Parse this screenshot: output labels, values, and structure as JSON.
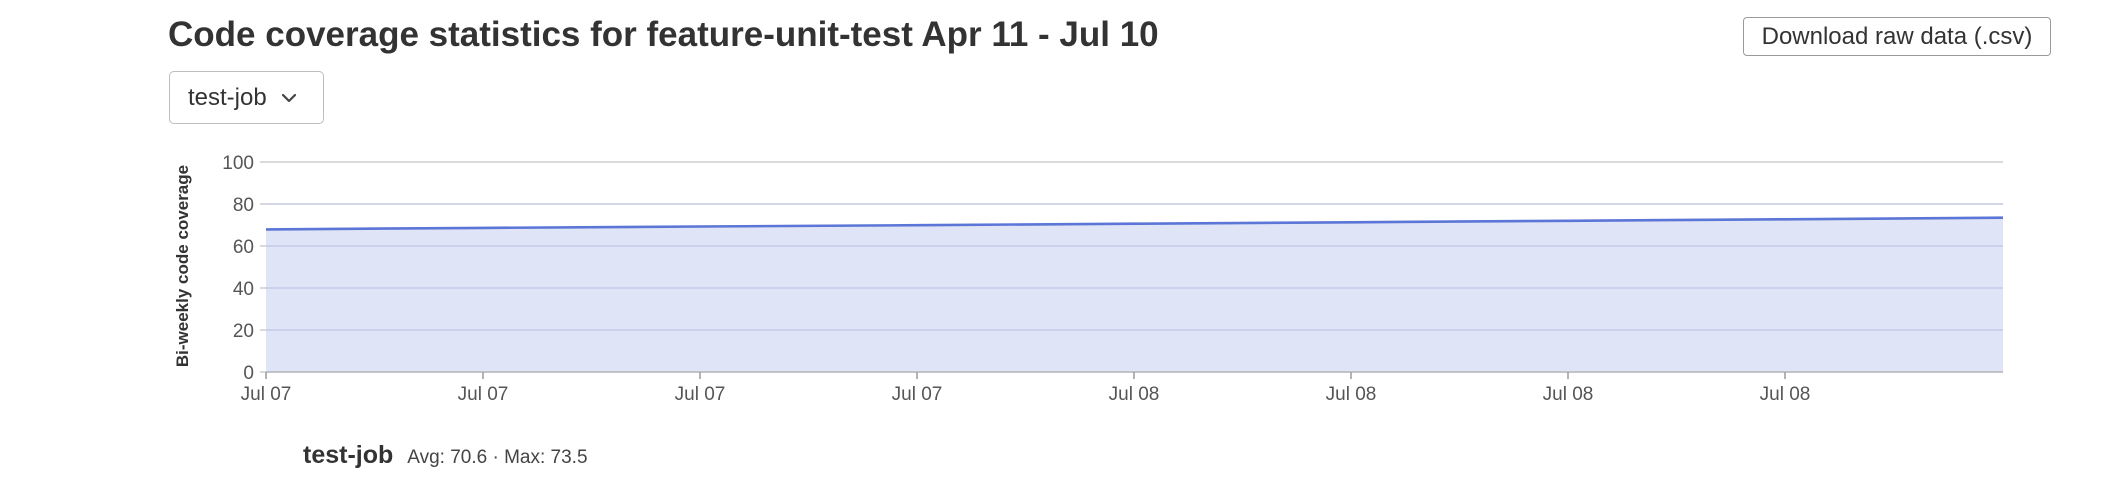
{
  "header": {
    "title": "Code coverage statistics for feature-unit-test Apr 11 - Jul 10",
    "download_label": "Download raw data (.csv)"
  },
  "job_selector": {
    "selected": "test-job",
    "icon": "chevron-down-icon"
  },
  "chart_data": {
    "type": "area",
    "ylabel": "Bi-weekly code coverage",
    "ylim": [
      0,
      100
    ],
    "yticks": [
      0,
      20,
      40,
      60,
      80,
      100
    ],
    "xtick_labels": [
      "Jul 07",
      "Jul 07",
      "Jul 07",
      "Jul 07",
      "Jul 08",
      "Jul 08",
      "Jul 08",
      "Jul 08"
    ],
    "grid": true,
    "series": [
      {
        "name": "test-job",
        "values": [
          67.9,
          68.6,
          69.3,
          69.9,
          70.6,
          71.3,
          72.0,
          72.7,
          73.5
        ]
      }
    ],
    "colors": {
      "line": "#5b76d6",
      "fill": "#dfe4f6",
      "grid": "#c4c4c4",
      "axis_text": "#555555"
    }
  },
  "legend": {
    "name": "test-job",
    "stats": "Avg: 70.6 · Max: 73.5"
  }
}
